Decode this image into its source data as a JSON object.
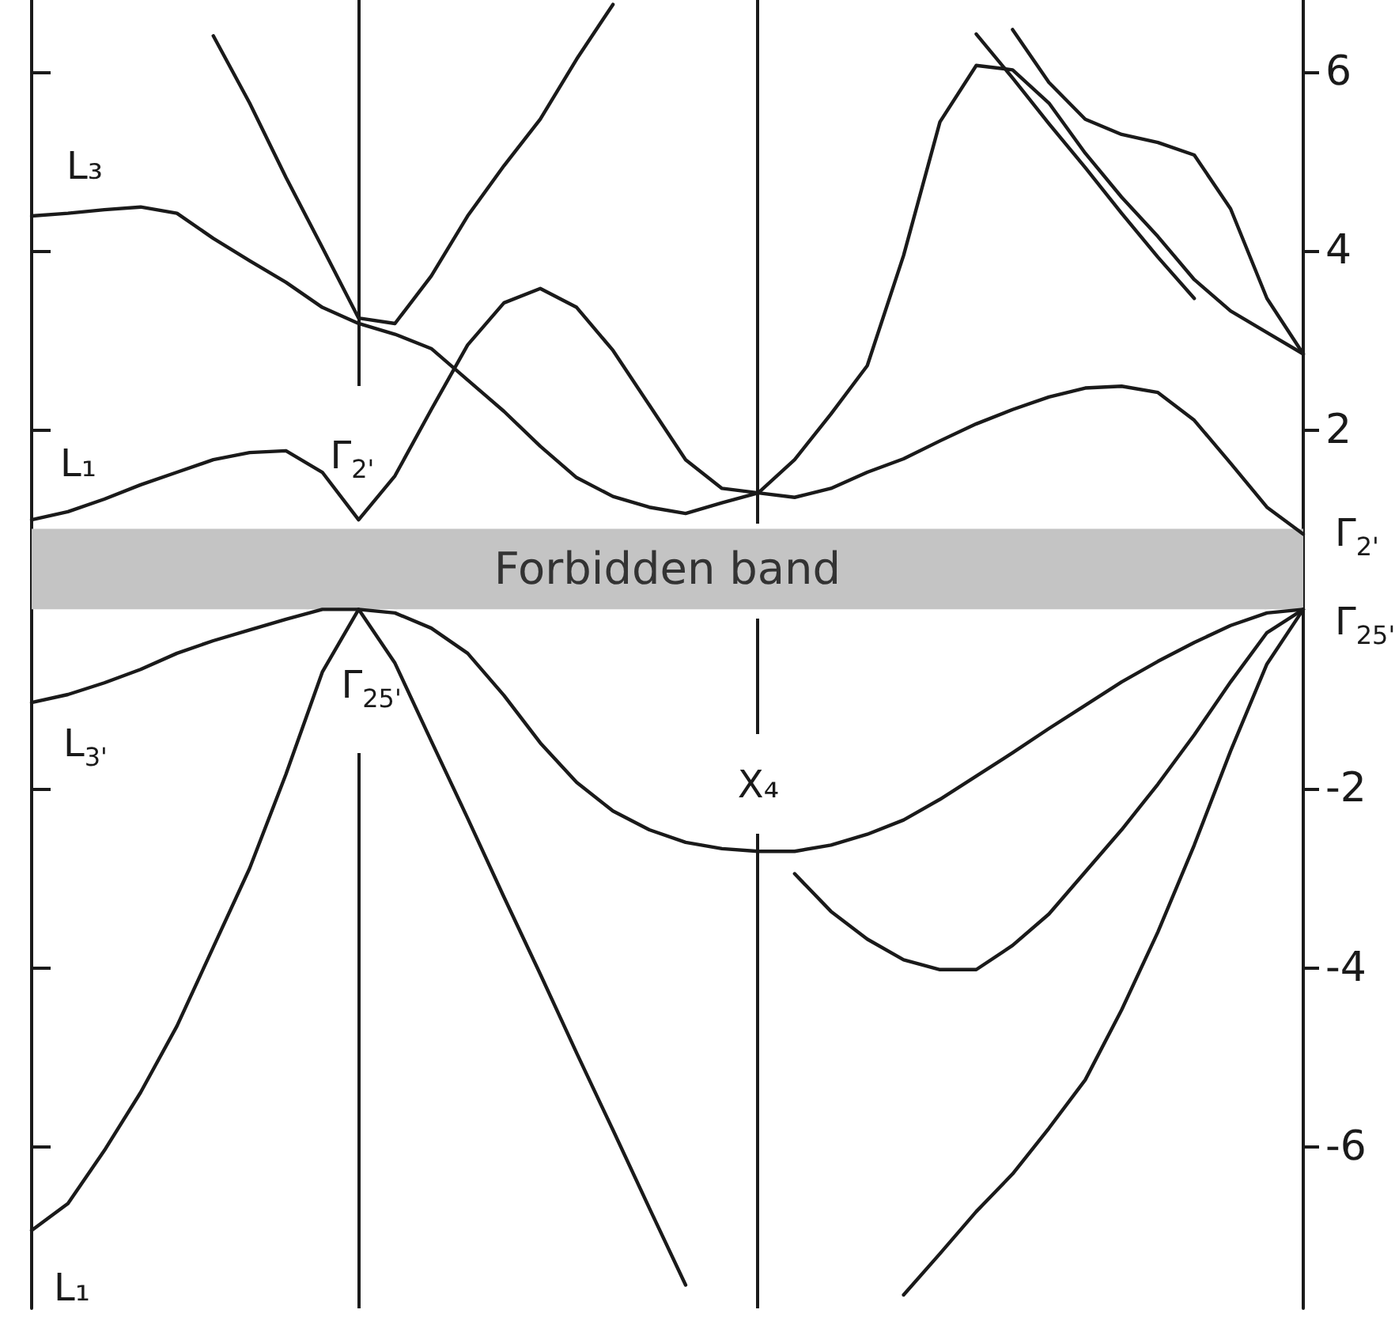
{
  "chart_data": {
    "type": "line",
    "categories": [
      null,
      null,
      null,
      null,
      null,
      null,
      null,
      null,
      null,
      null,
      null,
      null,
      null,
      null,
      null,
      null,
      null,
      null,
      null,
      null,
      null,
      null,
      null,
      null,
      null,
      null,
      null,
      null,
      null,
      null,
      null,
      null,
      null,
      null,
      null,
      null
    ],
    "series": [
      {
        "color": "#1a1a1a",
        "values": [
          -6.93,
          -6.63,
          -6.04,
          -5.39,
          -4.65,
          -3.77,
          -2.89,
          -1.84,
          -0.7,
          0,
          -0.6,
          -1.47,
          -2.33,
          -3.21,
          -4.07,
          -4.95,
          -5.81,
          -6.68,
          -7.54,
          null,
          null,
          null,
          null,
          null,
          -7.65,
          -7.19,
          -6.72,
          -6.3,
          -5.79,
          -5.25,
          -4.47,
          -3.6,
          -2.63,
          -1.58,
          -0.61,
          0
        ]
      },
      {
        "color": "#1a1a1a",
        "values": [
          -1.04,
          -0.95,
          -0.82,
          -0.67,
          -0.49,
          -0.35,
          -0.23,
          -0.11,
          0,
          0,
          -0.04,
          -0.21,
          -0.49,
          -0.96,
          -1.49,
          -1.93,
          -2.25,
          -2.46,
          -2.6,
          -2.67,
          -2.7,
          -2.7,
          -2.63,
          -2.51,
          -2.35,
          -2.12,
          -1.86,
          -1.6,
          -1.33,
          -1.07,
          -0.81,
          -0.58,
          -0.37,
          -0.18,
          -0.04,
          0
        ]
      },
      {
        "color": "#1a1a1a",
        "values": [
          null,
          null,
          null,
          null,
          null,
          null,
          null,
          null,
          null,
          null,
          null,
          null,
          null,
          null,
          null,
          null,
          null,
          null,
          null,
          null,
          null,
          -2.95,
          -3.37,
          -3.68,
          -3.91,
          -4.02,
          -4.02,
          -3.75,
          -3.4,
          -2.93,
          -2.46,
          -1.95,
          -1.4,
          -0.81,
          -0.26,
          0
        ]
      },
      {
        "color": "#1a1a1a",
        "values": [
          1.0,
          1.09,
          1.23,
          1.39,
          1.53,
          1.67,
          1.75,
          1.77,
          1.53,
          1.0,
          1.49,
          2.23,
          2.95,
          3.42,
          3.58,
          3.37,
          2.89,
          2.28,
          1.67,
          1.35,
          1.3,
          1.67,
          2.18,
          2.72,
          3.95,
          5.44,
          6.07,
          6.02,
          5.65,
          5.09,
          4.6,
          4.16,
          3.68,
          3.33,
          3.09,
          2.85
        ]
      },
      {
        "color": "#1a1a1a",
        "values": [
          4.39,
          4.42,
          4.46,
          4.49,
          4.42,
          4.14,
          3.89,
          3.65,
          3.37,
          3.19,
          3.07,
          2.91,
          2.56,
          2.21,
          1.82,
          1.47,
          1.26,
          1.14,
          1.07,
          1.19,
          1.3,
          1.25,
          1.35,
          1.53,
          1.68,
          1.88,
          2.07,
          2.23,
          2.37,
          2.47,
          2.49,
          2.42,
          2.11,
          1.63,
          1.14,
          0.84
        ]
      },
      {
        "color": "#1a1a1a",
        "values": [
          null,
          null,
          null,
          null,
          null,
          6.4,
          5.65,
          4.82,
          4.04,
          3.25,
          3.19,
          3.72,
          4.39,
          4.95,
          5.47,
          6.14,
          6.75,
          null,
          null,
          null,
          null,
          null,
          null,
          null,
          null,
          null,
          null,
          null,
          null,
          null,
          null,
          null,
          null,
          null,
          null,
          null
        ]
      },
      {
        "color": "#1a1a1a",
        "values": [
          null,
          null,
          null,
          null,
          null,
          null,
          null,
          null,
          null,
          null,
          null,
          null,
          null,
          null,
          null,
          null,
          null,
          null,
          null,
          null,
          null,
          null,
          null,
          null,
          null,
          null,
          6.42,
          5.93,
          5.42,
          4.93,
          4.42,
          3.93,
          3.47,
          null,
          null,
          null
        ]
      },
      {
        "color": "#1a1a1a",
        "values": [
          null,
          null,
          null,
          null,
          null,
          null,
          null,
          null,
          null,
          null,
          null,
          null,
          null,
          null,
          null,
          null,
          null,
          null,
          null,
          null,
          null,
          null,
          null,
          null,
          null,
          null,
          null,
          6.47,
          5.88,
          5.47,
          5.3,
          5.21,
          5.07,
          4.47,
          3.47,
          2.85
        ]
      }
    ],
    "ylim": [
      -7.8,
      6.8
    ],
    "yticks": [
      -6,
      -4,
      -2,
      2,
      4,
      6
    ],
    "marker": "none",
    "line_style": "solid",
    "bands": [
      {
        "axis": "y",
        "from": 0,
        "to": 0.9,
        "label": "Forbidden band",
        "color": "#c4c4c4"
      }
    ],
    "annotations": [
      "L₃",
      "L₁",
      "L$_{3'}$",
      "L₁",
      "Γ$_{2'}$",
      "Γ$_{25'}$",
      "X₄",
      "Γ$_{2'}$",
      "Γ$_{25'}$"
    ]
  }
}
